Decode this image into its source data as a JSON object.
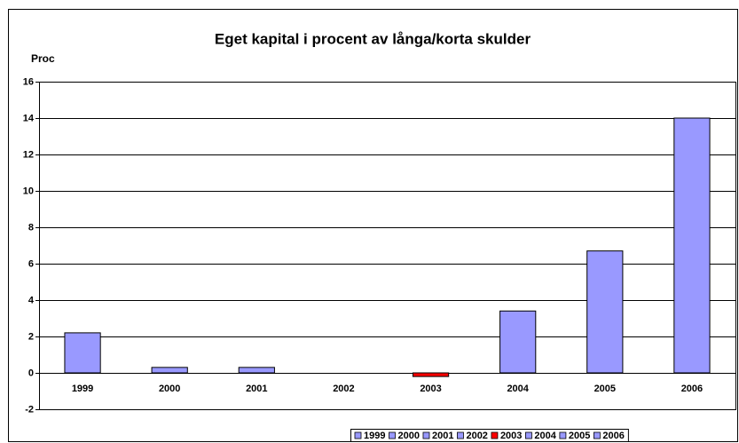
{
  "chart_data": {
    "type": "bar",
    "title": "Eget kapital i procent av långa/korta skulder",
    "y_label": "Proc",
    "categories": [
      "1999",
      "2000",
      "2001",
      "2002",
      "2003",
      "2004",
      "2005",
      "2006"
    ],
    "values": [
      2.2,
      0.3,
      0.3,
      0,
      -0.2,
      3.4,
      6.7,
      14.0
    ],
    "colors": [
      "#9999ff",
      "#9999ff",
      "#9999ff",
      "#9999ff",
      "#ff0000",
      "#9999ff",
      "#9999ff",
      "#9999ff"
    ],
    "ylim": [
      -2,
      16
    ],
    "yticks": [
      -2,
      0,
      2,
      4,
      6,
      8,
      10,
      12,
      14,
      16
    ],
    "grid": true,
    "legend": "bottom"
  }
}
